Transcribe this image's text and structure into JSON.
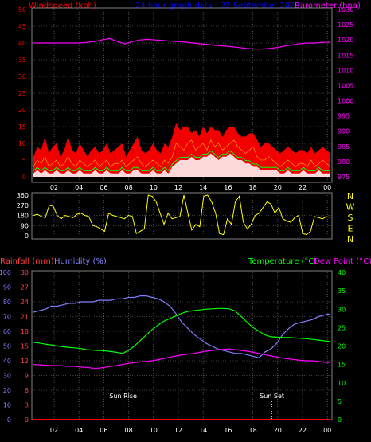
{
  "header": {
    "left": "Windspeed (kph)",
    "center": "24 hour graph data - 22 September 2023",
    "right": "Barometer (hpa)"
  },
  "colors": {
    "background": "#000000",
    "grid": "#808080",
    "wind_speed": "#ff0000",
    "wind_gust": "#ff0000",
    "wind_avg": "#ffffff",
    "wind_avg2": "#00ff00",
    "barometer": "#ff00ff",
    "direction": "#ffff00",
    "temperature": "#00ff00",
    "humidity": "#8080ff",
    "dew_point": "#ff00ff",
    "rainfall": "#ff0000",
    "left_axis_top": "#ff0000",
    "right_axis_top": "#ff00ff",
    "rain_axis": "#ff4040",
    "humidity_axis": "#8080ff",
    "temp_axis": "#00ff00"
  },
  "chart_data": [
    {
      "type": "area",
      "title": "",
      "series": [
        {
          "name": "Windspeed (kph)",
          "values": [
            3,
            5,
            4,
            6,
            3,
            4,
            5,
            3,
            4,
            6,
            4,
            3,
            5,
            4,
            3,
            4,
            5,
            3,
            4,
            5,
            3,
            4,
            4,
            5,
            3,
            4,
            5,
            6,
            4,
            3,
            4,
            5,
            4,
            3,
            5,
            4,
            6,
            10,
            9,
            8,
            10,
            11,
            8,
            9,
            10,
            8,
            11,
            9,
            10,
            8,
            9,
            10,
            11,
            9,
            8,
            7,
            8,
            9,
            6,
            5,
            5,
            6,
            5,
            4,
            3,
            4,
            5,
            4,
            3,
            4,
            4,
            3,
            5,
            3,
            4,
            5,
            4,
            3
          ]
        },
        {
          "name": "Gust",
          "values": [
            6,
            9,
            8,
            12,
            7,
            9,
            10,
            6,
            8,
            12,
            8,
            7,
            10,
            8,
            6,
            8,
            9,
            7,
            8,
            10,
            7,
            8,
            9,
            10,
            6,
            8,
            10,
            12,
            8,
            7,
            8,
            10,
            8,
            7,
            10,
            9,
            12,
            16,
            14,
            15,
            15,
            13,
            14,
            12,
            15,
            13,
            15,
            14,
            14,
            12,
            14,
            15,
            15,
            13,
            12,
            12,
            13,
            13,
            11,
            9,
            10,
            10,
            9,
            8,
            7,
            8,
            9,
            8,
            7,
            8,
            8,
            7,
            9,
            7,
            8,
            9,
            8,
            7
          ]
        },
        {
          "name": "Average",
          "values": [
            1,
            2,
            1,
            2,
            1,
            1,
            2,
            1,
            1,
            2,
            1,
            1,
            2,
            1,
            1,
            1,
            2,
            1,
            1,
            2,
            1,
            1,
            1,
            2,
            1,
            1,
            2,
            2,
            1,
            1,
            1,
            2,
            1,
            1,
            2,
            1,
            3,
            4,
            5,
            5,
            5,
            6,
            5,
            5,
            6,
            6,
            7,
            6,
            5,
            6,
            6,
            7,
            6,
            5,
            5,
            4,
            4,
            3,
            3,
            2,
            2,
            2,
            2,
            2,
            1,
            1,
            2,
            1,
            1,
            1,
            2,
            1,
            1,
            1,
            2,
            1,
            1,
            1
          ]
        },
        {
          "name": "Barometer (hpa)",
          "values": [
            1019,
            1019,
            1019,
            1019,
            1019,
            1019,
            1019,
            1019.2,
            1019.5,
            1020,
            1020.5,
            1019.5,
            1018.7,
            1019.5,
            1020,
            1020.2,
            1020,
            1019.8,
            1019.6,
            1019.5,
            1019.3,
            1019,
            1018.7,
            1018.5,
            1018.2,
            1018,
            1017.8,
            1017.5,
            1017.2,
            1017,
            1017,
            1017.2,
            1017.5,
            1018,
            1018.4,
            1018.8,
            1019,
            1019,
            1019.2,
            1019.3
          ]
        }
      ],
      "xlabel": "",
      "ylabel": "Windspeed (kph)",
      "ylim": [
        0,
        50
      ],
      "y2label": "Barometer (hpa)",
      "y2lim": [
        975,
        1030
      ],
      "x_ticks": [
        "02",
        "04",
        "06",
        "08",
        "10",
        "12",
        "14",
        "16",
        "18",
        "20",
        "22",
        "00"
      ],
      "y_ticks": [
        "0",
        "5",
        "10",
        "15",
        "20",
        "25",
        "30",
        "35",
        "40",
        "45",
        "50"
      ],
      "y2_ticks": [
        "975",
        "980",
        "985",
        "990",
        "995",
        "1000",
        "1005",
        "1010",
        "1015",
        "1020",
        "1025",
        "1030"
      ],
      "grid": true
    },
    {
      "type": "line",
      "title": "",
      "series": [
        {
          "name": "Wind direction",
          "values": [
            180,
            190,
            170,
            160,
            270,
            260,
            180,
            150,
            180,
            170,
            160,
            190,
            200,
            180,
            170,
            90,
            80,
            60,
            40,
            200,
            180,
            170,
            160,
            150,
            180,
            170,
            20,
            40,
            60,
            360,
            350,
            300,
            200,
            100,
            200,
            150,
            160,
            170,
            360,
            200,
            50,
            100,
            80,
            350,
            360,
            300,
            200,
            20,
            10,
            150,
            100,
            300,
            350,
            120,
            60,
            100,
            180,
            200,
            250,
            300,
            280,
            200,
            250,
            150,
            130,
            120,
            160,
            180,
            20,
            10,
            40,
            170,
            160,
            150,
            170,
            160
          ]
        }
      ],
      "ylim": [
        0,
        360
      ],
      "y_ticks": [
        "0",
        "90",
        "180",
        "270",
        "360"
      ],
      "compass_labels": [
        "N",
        "W",
        "S",
        "E",
        "N"
      ],
      "grid": true
    },
    {
      "type": "line",
      "title": "",
      "series": [
        {
          "name": "Humidity (%)",
          "values": [
            73,
            74,
            75,
            77,
            77,
            78,
            79,
            79,
            80,
            80,
            80,
            81,
            81,
            81,
            82,
            82,
            83,
            83,
            84,
            84,
            83,
            82,
            80,
            77,
            72,
            66,
            62,
            58,
            55,
            52,
            50,
            48,
            47,
            46,
            45,
            45,
            44,
            43,
            42,
            46,
            48,
            52,
            58,
            62,
            65,
            66,
            67,
            68,
            70,
            71,
            72
          ]
        },
        {
          "name": "Temperature (°C)",
          "values": [
            21,
            20.8,
            20.5,
            20.3,
            20,
            19.8,
            19.6,
            19.5,
            19.3,
            19,
            18.9,
            18.8,
            18.7,
            18.5,
            18.3,
            18,
            18.8,
            20,
            21.5,
            23,
            24.5,
            25.7,
            26.8,
            27.5,
            28.2,
            28.9,
            29.4,
            29.6,
            29.8,
            30,
            30.1,
            30.2,
            30.2,
            30.1,
            29.5,
            28,
            26.4,
            25,
            24,
            23,
            22.5,
            22.4,
            22.3,
            22.3,
            22.2,
            22.1,
            22,
            21.8,
            21.6,
            21.4,
            21.2
          ]
        },
        {
          "name": "Dew Point (°C)",
          "values": [
            15,
            14.9,
            14.8,
            14.7,
            14.7,
            14.6,
            14.5,
            14.5,
            14.3,
            14.2,
            14,
            14,
            14.2,
            14.5,
            14.7,
            15,
            15.3,
            15.5,
            15.7,
            15.8,
            16,
            16.3,
            16.6,
            17,
            17.3,
            17.6,
            17.8,
            18,
            18.3,
            18.6,
            18.8,
            19,
            19.1,
            19.2,
            19,
            18.8,
            18.6,
            18.3,
            18,
            17.6,
            17.3,
            17,
            16.7,
            16.5,
            16.3,
            16.1,
            16,
            16,
            15.8,
            15.6,
            15.5
          ]
        },
        {
          "name": "Rainfall (mm)",
          "values": [
            0,
            0,
            0,
            0,
            0,
            0,
            0,
            0,
            0,
            0,
            0,
            0,
            0,
            0,
            0,
            0,
            0,
            0,
            0,
            0,
            0,
            0,
            0,
            0,
            0,
            0,
            0,
            0,
            0,
            0,
            0,
            0,
            0,
            0,
            0,
            0,
            0,
            0,
            0,
            0,
            0,
            0,
            0,
            0,
            0,
            0,
            0,
            0,
            0,
            0,
            0
          ]
        }
      ],
      "axis_labels": {
        "rain": "Rainfall (mm)",
        "humidity": "Humidity (%)",
        "temperature": "Temperature (°C)",
        "dew_point": "Dew Point (°C)"
      },
      "humidity_ticks": [
        "0",
        "10",
        "20",
        "30",
        "40",
        "50",
        "60",
        "70",
        "80",
        "90",
        "100"
      ],
      "rain_ticks": [
        "0",
        "3",
        "6",
        "9",
        "12",
        "15",
        "18",
        "21",
        "24",
        "27",
        "30"
      ],
      "temp_ticks": [
        "0",
        "5",
        "10",
        "15",
        "20",
        "25",
        "30",
        "35",
        "40"
      ],
      "humidity_lim": [
        0,
        100
      ],
      "temp_lim": [
        0,
        40
      ],
      "rain_lim": [
        0,
        30
      ],
      "x_ticks": [
        "02",
        "04",
        "06",
        "08",
        "10",
        "12",
        "14",
        "16",
        "18",
        "20",
        "22",
        "00"
      ],
      "annotations": {
        "sunrise": "Sun Rise",
        "sunset": "Sun Set"
      },
      "sunrise_hour": 7.3,
      "sunset_hour": 19.2,
      "grid": true
    }
  ]
}
